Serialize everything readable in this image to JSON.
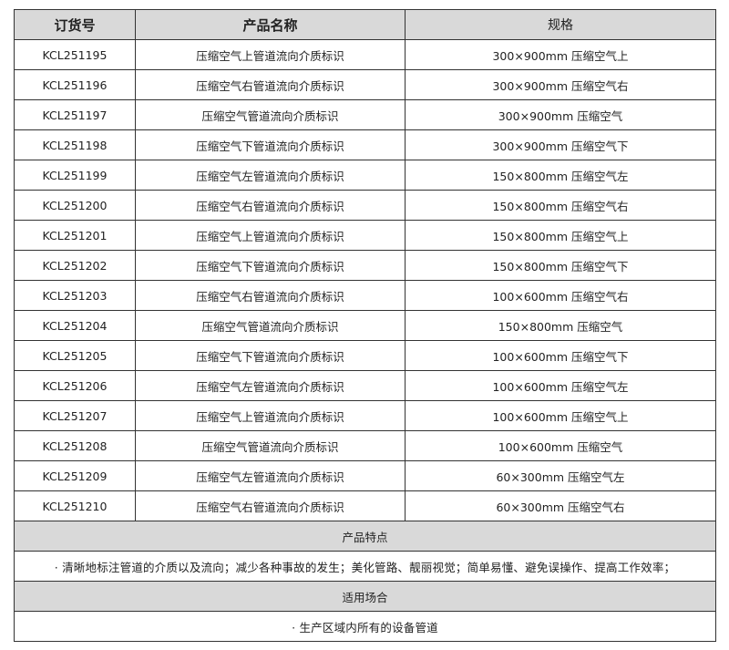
{
  "headers": [
    "订货号",
    "产品名称",
    "规格"
  ],
  "rows": [
    [
      "KCL251195",
      "压缩空气上管道流向介质标识",
      "300×900mm 压缩空气上"
    ],
    [
      "KCL251196",
      "压缩空气右管道流向介质标识",
      "300×900mm 压缩空气右"
    ],
    [
      "KCL251197",
      "压缩空气管道流向介质标识",
      "300×900mm 压缩空气"
    ],
    [
      "KCL251198",
      "压缩空气下管道流向介质标识",
      "300×900mm 压缩空气下"
    ],
    [
      "KCL251199",
      "压缩空气左管道流向介质标识",
      "150×800mm 压缩空气左"
    ],
    [
      "KCL251200",
      "压缩空气右管道流向介质标识",
      "150×800mm 压缩空气右"
    ],
    [
      "KCL251201",
      "压缩空气上管道流向介质标识",
      "150×800mm 压缩空气上"
    ],
    [
      "KCL251202",
      "压缩空气下管道流向介质标识",
      "150×800mm 压缩空气下"
    ],
    [
      "KCL251203",
      "压缩空气右管道流向介质标识",
      "100×600mm 压缩空气右"
    ],
    [
      "KCL251204",
      "压缩空气管道流向介质标识",
      "150×800mm 压缩空气"
    ],
    [
      "KCL251205",
      "压缩空气下管道流向介质标识",
      "100×600mm 压缩空气下"
    ],
    [
      "KCL251206",
      "压缩空气左管道流向介质标识",
      "100×600mm 压缩空气左"
    ],
    [
      "KCL251207",
      "压缩空气上管道流向介质标识",
      "100×600mm 压缩空气上"
    ],
    [
      "KCL251208",
      "压缩空气管道流向介质标识",
      "100×600mm 压缩空气"
    ],
    [
      "KCL251209",
      "压缩空气左管道流向介质标识",
      "60×300mm 压缩空气左"
    ],
    [
      "KCL251210",
      "压缩空气右管道流向介质标识",
      "60×300mm 压缩空气右"
    ]
  ],
  "features": {
    "title": "产品特点",
    "text": "· 清晰地标注管道的介质以及流向；减少各种事故的发生；美化管路、靓丽视觉；简单易懂、避免误操作、提高工作效率；"
  },
  "usage": {
    "title": "适用场合",
    "text": "· 生产区域内所有的设备管道"
  }
}
